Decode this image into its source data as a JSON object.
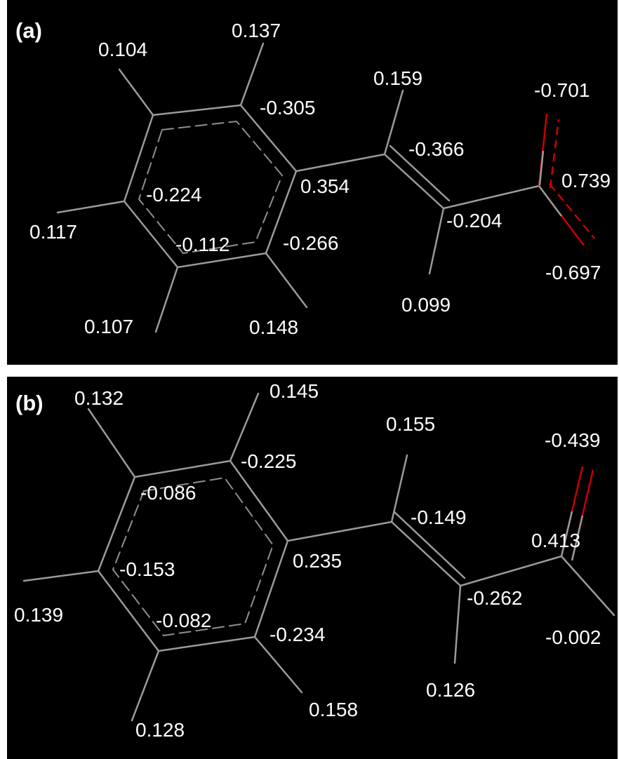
{
  "colors": {
    "background": "#000000",
    "bond": "#9a9a9a",
    "oxygen_bond": "#cc0000",
    "text": "#ffffff"
  },
  "panels": [
    {
      "label": "(a)",
      "charges": [
        "0.137",
        "0.104",
        "0.159",
        "-0.305",
        "-0.701",
        "-0.366",
        "0.739",
        "-0.224",
        "0.354",
        "0.117",
        "-0.204",
        "-0.112",
        "-0.266",
        "-0.697",
        "0.099",
        "0.107",
        "0.148"
      ]
    },
    {
      "label": "(b)",
      "charges": [
        "0.145",
        "0.132",
        "0.155",
        "-0.225",
        "-0.439",
        "-0.086",
        "-0.149",
        "0.413",
        "0.235",
        "-0.153",
        "-0.262",
        "0.139",
        "-0.082",
        "-0.234",
        "-0.002",
        "0.126",
        "0.158",
        "0.128"
      ]
    }
  ]
}
